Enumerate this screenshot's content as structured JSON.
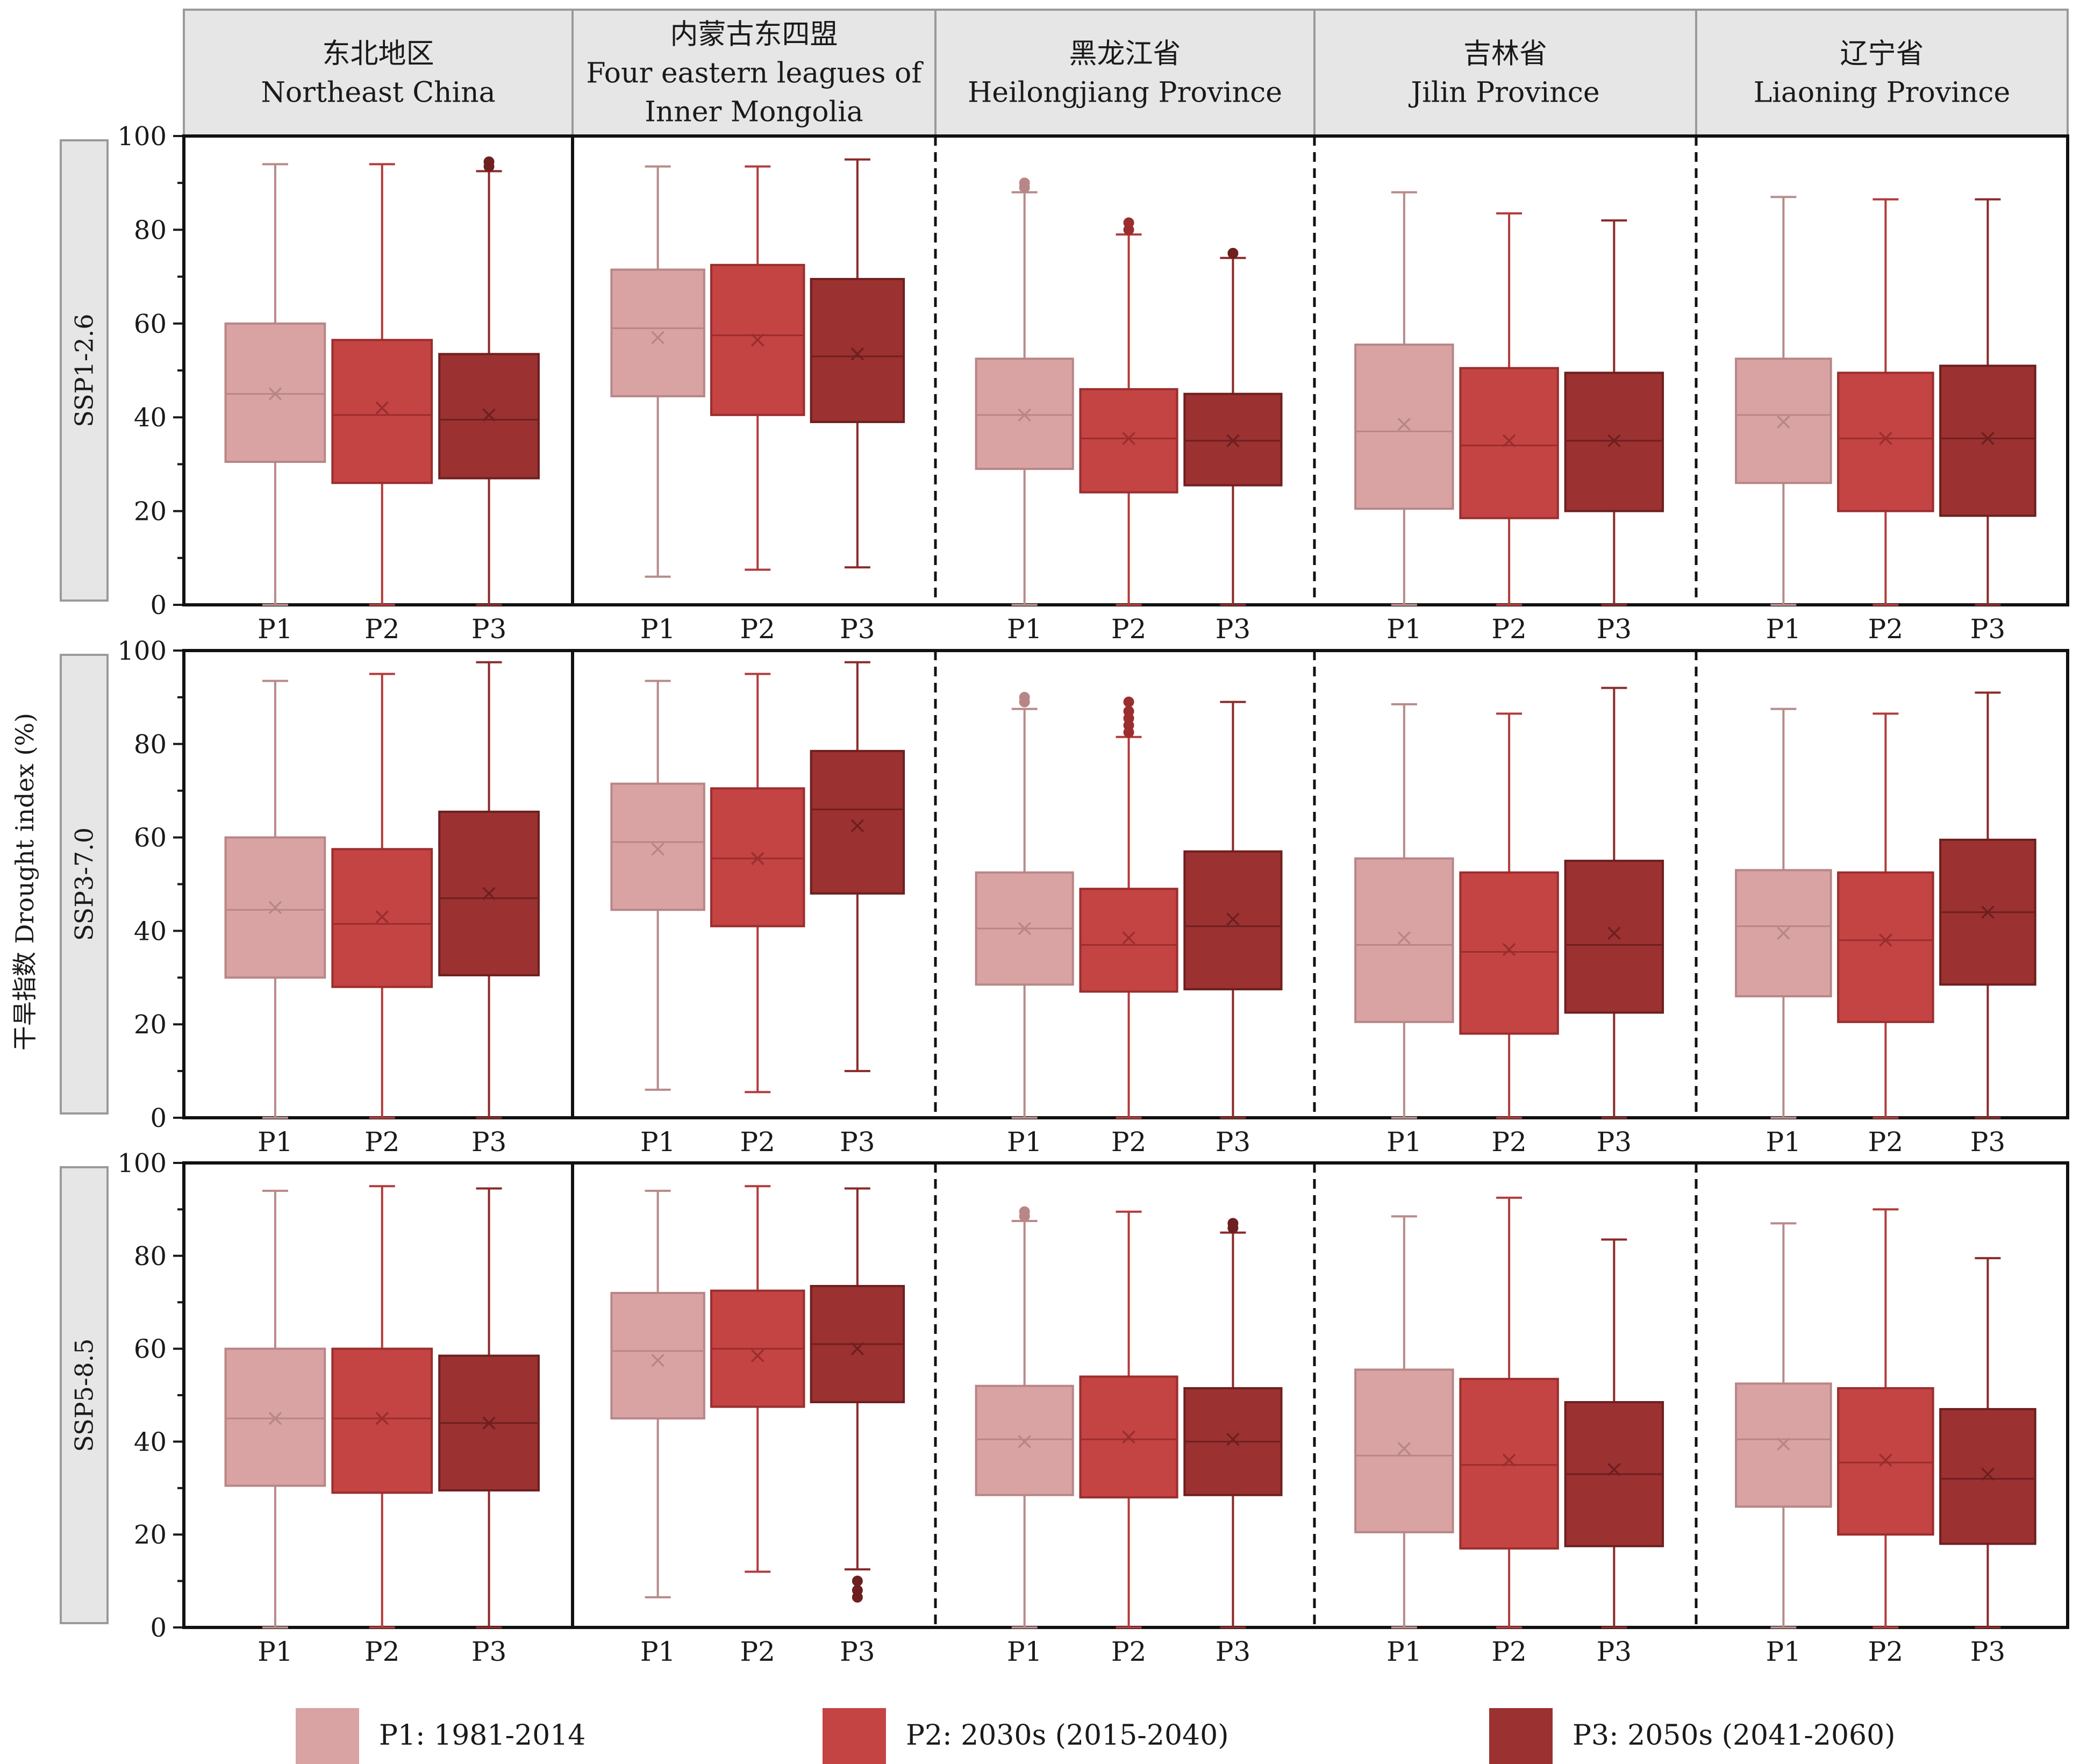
{
  "chart_data": {
    "type": "box",
    "ylabel": "干旱指数 Drought index (%)",
    "ylim": [
      0,
      100
    ],
    "yticks": [
      0,
      20,
      40,
      60,
      80,
      100
    ],
    "categories": [
      "P1",
      "P2",
      "P3"
    ],
    "columns": [
      {
        "cn": "东北地区",
        "en": [
          "Northeast China"
        ]
      },
      {
        "cn": "内蒙古东四盟",
        "en": [
          "Four eastern leagues of",
          "Inner Mongolia"
        ]
      },
      {
        "cn": "黑龙江省",
        "en": [
          "Heilongjiang Province"
        ]
      },
      {
        "cn": "吉林省",
        "en": [
          "Jilin Province"
        ]
      },
      {
        "cn": "辽宁省",
        "en": [
          "Liaoning Province"
        ]
      }
    ],
    "rows": [
      "SSP1-2.6",
      "SSP3-7.0",
      "SSP5-8.5"
    ],
    "legend": [
      {
        "label": "P1: 1981-2014",
        "color": "#d9a3a3"
      },
      {
        "label": "P2: 2030s (2015-2040)",
        "color": "#c44343"
      },
      {
        "label": "P3: 2050s (2041-2060)",
        "color": "#9b3131"
      }
    ],
    "panels": [
      [
        [
          [
            0,
            30.5,
            45,
            60,
            94,
            45,
            []
          ],
          [
            0,
            26,
            40.5,
            56.5,
            94,
            42,
            []
          ],
          [
            0,
            27,
            39.5,
            53.5,
            92.5,
            40.5,
            [
              93.5,
              94.5
            ]
          ]
        ],
        [
          [
            6,
            44.5,
            59,
            71.5,
            93.5,
            57,
            []
          ],
          [
            7.5,
            40.5,
            57.5,
            72.5,
            93.5,
            56.5,
            []
          ],
          [
            8,
            39,
            53,
            69.5,
            95,
            53.5,
            []
          ]
        ],
        [
          [
            0,
            29,
            40.5,
            52.5,
            88,
            40.5,
            [
              89,
              90
            ]
          ],
          [
            0,
            24,
            35.5,
            46,
            79,
            35.5,
            [
              80,
              81.5
            ]
          ],
          [
            0,
            25.5,
            35,
            45,
            74,
            35,
            [
              75
            ]
          ]
        ],
        [
          [
            0,
            20.5,
            37,
            55.5,
            88,
            38.5,
            []
          ],
          [
            0,
            18.5,
            34,
            50.5,
            83.5,
            35,
            []
          ],
          [
            0,
            20,
            35,
            49.5,
            82,
            35,
            []
          ]
        ],
        [
          [
            0,
            26,
            40.5,
            52.5,
            87,
            39,
            []
          ],
          [
            0,
            20,
            35.5,
            49.5,
            86.5,
            35.5,
            []
          ],
          [
            0,
            19,
            35.5,
            51,
            86.5,
            35.5,
            []
          ]
        ]
      ],
      [
        [
          [
            0,
            30,
            44.5,
            60,
            93.5,
            45,
            []
          ],
          [
            0,
            28,
            41.5,
            57.5,
            95,
            43,
            []
          ],
          [
            0,
            30.5,
            47,
            65.5,
            97.5,
            48,
            []
          ]
        ],
        [
          [
            6,
            44.5,
            59,
            71.5,
            93.5,
            57.5,
            []
          ],
          [
            5.5,
            41,
            55.5,
            70.5,
            95,
            55.5,
            []
          ],
          [
            10,
            48,
            66,
            78.5,
            97.5,
            62.5,
            []
          ]
        ],
        [
          [
            0,
            28.5,
            40.5,
            52.5,
            87.5,
            40.5,
            [
              89,
              90
            ]
          ],
          [
            0,
            27,
            37,
            49,
            81.5,
            38.5,
            [
              82.5,
              84,
              85.5,
              87,
              89
            ]
          ],
          [
            0,
            27.5,
            41,
            57,
            89,
            42.5,
            []
          ]
        ],
        [
          [
            0,
            20.5,
            37,
            55.5,
            88.5,
            38.5,
            []
          ],
          [
            0,
            18,
            35.5,
            52.5,
            86.5,
            36,
            []
          ],
          [
            0,
            22.5,
            37,
            55,
            92,
            39.5,
            []
          ]
        ],
        [
          [
            0,
            26,
            41,
            53,
            87.5,
            39.5,
            []
          ],
          [
            0,
            20.5,
            38,
            52.5,
            86.5,
            38,
            []
          ],
          [
            0,
            28.5,
            44,
            59.5,
            91,
            44,
            []
          ]
        ]
      ],
      [
        [
          [
            0,
            30.5,
            45,
            60,
            94,
            45,
            []
          ],
          [
            0,
            29,
            45,
            60,
            95,
            45,
            []
          ],
          [
            0,
            29.5,
            44,
            58.5,
            94.5,
            44,
            []
          ]
        ],
        [
          [
            6.5,
            45,
            59.5,
            72,
            94,
            57.5,
            []
          ],
          [
            12,
            47.5,
            60,
            72.5,
            95,
            58.5,
            []
          ],
          [
            12.5,
            48.5,
            61,
            73.5,
            94.5,
            60,
            [
              6.5,
              8,
              10
            ]
          ]
        ],
        [
          [
            0,
            28.5,
            40.5,
            52,
            87.5,
            40,
            [
              88.5,
              89.5
            ]
          ],
          [
            0,
            28,
            40.5,
            54,
            89.5,
            41,
            []
          ],
          [
            0,
            28.5,
            40,
            51.5,
            85,
            40.5,
            [
              86,
              87
            ]
          ]
        ],
        [
          [
            0,
            20.5,
            37,
            55.5,
            88.5,
            38.5,
            []
          ],
          [
            0,
            17,
            35,
            53.5,
            92.5,
            36,
            []
          ],
          [
            0,
            17.5,
            33,
            48.5,
            83.5,
            34,
            []
          ]
        ],
        [
          [
            0,
            26,
            40.5,
            52.5,
            87,
            39.5,
            []
          ],
          [
            0,
            20,
            35.5,
            51.5,
            90,
            36,
            []
          ],
          [
            0,
            18,
            32,
            47,
            79.5,
            33,
            []
          ]
        ]
      ]
    ]
  }
}
